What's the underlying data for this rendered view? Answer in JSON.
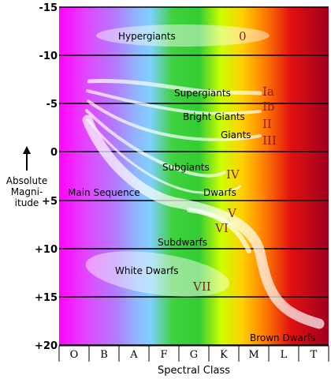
{
  "y_axis": {
    "label_lines": [
      "Absolute",
      "Magni-",
      "itude"
    ],
    "ticks": [
      "-15",
      "-10",
      "-5",
      "0",
      "+5",
      "+10",
      "+15",
      "+20"
    ]
  },
  "x_axis": {
    "label": "Spectral Class",
    "classes": [
      "O",
      "B",
      "A",
      "F",
      "G",
      "K",
      "M",
      "L",
      "T"
    ]
  },
  "regions": {
    "hypergiants": "Hypergiants",
    "supergiants": "Supergiants",
    "bright_giants": "Bright Giants",
    "giants": "Giants",
    "subgiants": "Subgiants",
    "main_sequence": "Main Sequence",
    "dwarfs": "Dwarfs",
    "subdwarfs": "Subdwarfs",
    "white_dwarfs": "White Dwarfs",
    "brown_dwarfs": "Brown Dwarfs"
  },
  "luminosity_classes": {
    "class_0": "0",
    "class_ia": "Ia",
    "class_ib": "Ib",
    "class_ii": "II",
    "class_iii": "III",
    "class_iv": "IV",
    "class_v": "V",
    "class_vi": "VI",
    "class_vii": "VII"
  },
  "colors": {
    "spectrum": [
      "#ff00ff",
      "#b27cff",
      "#7fd0ff",
      "#3fd23f",
      "#ccff00",
      "#ffd000",
      "#ff8000",
      "#e01010",
      "#a00020"
    ],
    "roman_numerals": "#8b1a1a"
  }
}
